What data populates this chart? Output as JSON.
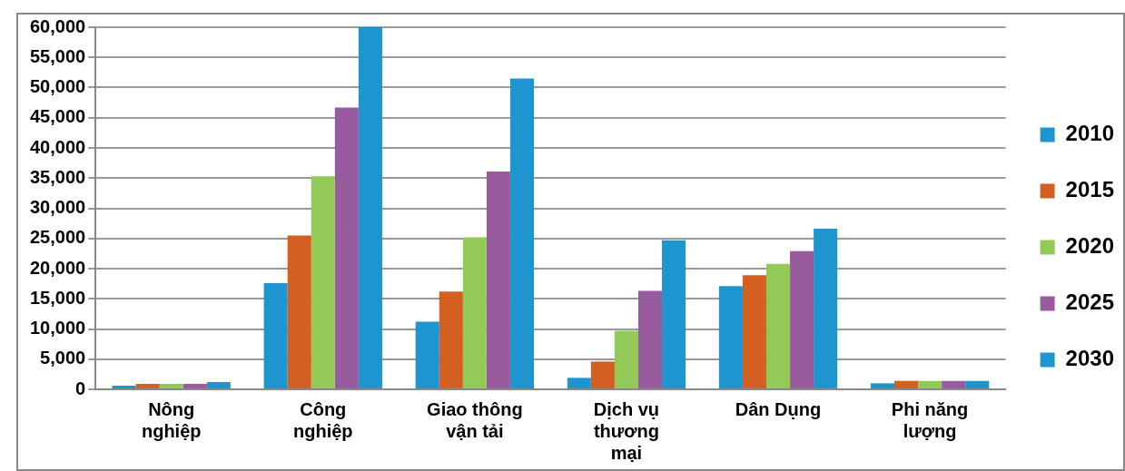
{
  "chart_data": {
    "type": "bar",
    "categories": [
      "Nông\nnghiệp",
      "Công\nnghiệp",
      "Giao thông\nvận tải",
      "Dịch vụ\nthương\nmại",
      "Dân Dụng",
      "Phi năng\nlượng"
    ],
    "series": [
      {
        "name": "2010",
        "color": "#1f95cf",
        "values": [
          600,
          17600,
          11200,
          1900,
          17100,
          1000
        ]
      },
      {
        "name": "2015",
        "color": "#d35f21",
        "values": [
          900,
          25500,
          16200,
          4600,
          18900,
          1400
        ]
      },
      {
        "name": "2020",
        "color": "#92c957",
        "values": [
          900,
          35300,
          25200,
          9700,
          20800,
          1400
        ]
      },
      {
        "name": "2025",
        "color": "#985b9d",
        "values": [
          900,
          46700,
          36100,
          16300,
          22900,
          1400
        ]
      },
      {
        "name": "2030",
        "color": "#1f95cf",
        "values": [
          1200,
          60000,
          51500,
          24700,
          26600,
          1400
        ]
      }
    ],
    "ylim": [
      0,
      60000
    ],
    "yticks": [
      0,
      {
        "value": 5000,
        "label": "5,000"
      },
      {
        "value": 10000,
        "label": "10,000"
      },
      {
        "value": 15000,
        "label": "15,000"
      },
      {
        "value": 20000,
        "label": "20,000"
      },
      {
        "value": 25000,
        "label": "25,000"
      },
      {
        "value": 30000,
        "label": "30,000"
      },
      {
        "value": 35000,
        "label": "35,000"
      },
      {
        "value": 40000,
        "label": "40,000"
      },
      {
        "value": 45000,
        "label": "45,000"
      },
      {
        "value": 50000,
        "label": "50,000"
      },
      {
        "value": 55000,
        "label": "55,000"
      },
      {
        "value": 60000,
        "label": "60,000"
      }
    ],
    "grid": "y",
    "legend": "right"
  }
}
